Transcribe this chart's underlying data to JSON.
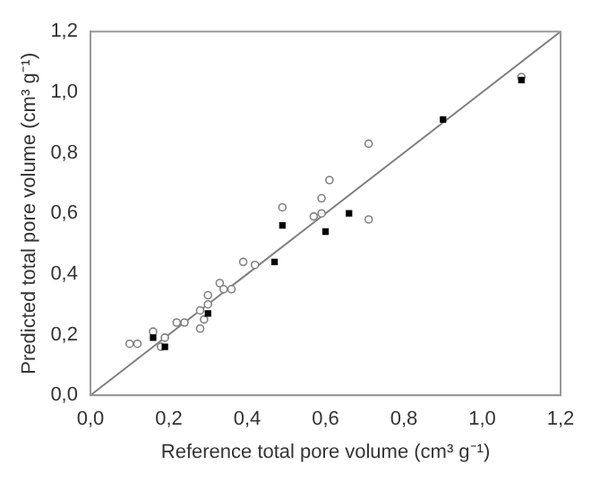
{
  "chart_data": {
    "type": "scatter",
    "xlabel": "Reference total pore volume (cm³ g⁻¹)",
    "ylabel": "Predicted total pore volume (cm³ g⁻¹)",
    "xlim": [
      0,
      1.2
    ],
    "ylim": [
      0,
      1.2
    ],
    "xticks": [
      {
        "value": 0,
        "label": "0,0"
      },
      {
        "value": 0.2,
        "label": "0,2"
      },
      {
        "value": 0.4,
        "label": "0,4"
      },
      {
        "value": 0.6,
        "label": "0,6"
      },
      {
        "value": 0.8,
        "label": "0,8"
      },
      {
        "value": 1,
        "label": "1,0"
      },
      {
        "value": 1.2,
        "label": "1,2"
      }
    ],
    "yticks": [
      {
        "value": 0,
        "label": "0,0"
      },
      {
        "value": 0.2,
        "label": "0,2"
      },
      {
        "value": 0.4,
        "label": "0,4"
      },
      {
        "value": 0.6,
        "label": "0,6"
      },
      {
        "value": 0.8,
        "label": "0,8"
      },
      {
        "value": 1,
        "label": "1,0"
      },
      {
        "value": 1.2,
        "label": "1,2"
      }
    ],
    "grid": false,
    "legend": false,
    "series": [
      {
        "type": "scatter",
        "marker": "circle",
        "color": "#808080",
        "x": [
          0.1,
          0.12,
          0.16,
          0.18,
          0.19,
          0.22,
          0.24,
          0.28,
          0.28,
          0.29,
          0.3,
          0.3,
          0.33,
          0.34,
          0.36,
          0.39,
          0.42,
          0.49,
          0.57,
          0.59,
          0.59,
          0.61,
          0.71,
          0.71,
          1.1
        ],
        "values": [
          0.17,
          0.17,
          0.21,
          0.16,
          0.19,
          0.24,
          0.24,
          0.22,
          0.28,
          0.25,
          0.3,
          0.33,
          0.37,
          0.35,
          0.35,
          0.44,
          0.43,
          0.62,
          0.59,
          0.6,
          0.65,
          0.71,
          0.58,
          0.83,
          1.05
        ]
      },
      {
        "type": "scatter",
        "marker": "square",
        "color": "#000000",
        "x": [
          0.16,
          0.19,
          0.3,
          0.47,
          0.49,
          0.6,
          0.66,
          0.9,
          1.1
        ],
        "values": [
          0.19,
          0.16,
          0.27,
          0.44,
          0.56,
          0.54,
          0.6,
          0.91,
          1.04
        ]
      },
      {
        "type": "line",
        "marker": "none",
        "color": "#808080",
        "x": [
          0,
          1.2
        ],
        "values": [
          0,
          1.2
        ]
      }
    ]
  }
}
